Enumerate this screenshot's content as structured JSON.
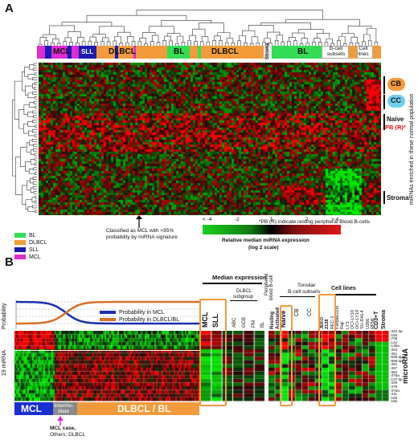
{
  "panel_a": {
    "letter": "A",
    "dendrogram_groups": {
      "mcl": "MCL",
      "sll": "SLL",
      "dlbcl1": "DLBCL",
      "bl1": "BL",
      "dlbcl2": "DLBCL",
      "stroma": "Stroma",
      "bl2": "BL",
      "bcell_subsets": "B-cell subsets",
      "cell_lines": "Cell lines"
    },
    "right_labels": {
      "cb": "CB",
      "cc": "CC",
      "naive": "Naive",
      "pbr": "PB (R)*",
      "stroma": "Stroma",
      "vertical_caption": "miRNAs enriched in these normal population"
    },
    "footnote": "*PB (R) indicate resting peripheral Blood B-cells",
    "arrow_caption_1": "Classified as MCL with >95%",
    "arrow_caption_2": "probability by miRNA signature",
    "legend": [
      {
        "label": "BL",
        "color": "#33dd55"
      },
      {
        "label": "DLBCL",
        "color": "#f39b3a"
      },
      {
        "label": "SLL",
        "color": "#1a1ab5"
      },
      {
        "label": "MCL",
        "color": "#e02ad2"
      }
    ],
    "colorbar": {
      "ticks": [
        "< -4",
        "-2",
        "1",
        "2",
        "> 4"
      ],
      "title_1": "Relative median miRNA expression",
      "title_2": "(log 2 scale)"
    },
    "colors": {
      "green": "#19c21e",
      "red": "#e01818",
      "black": "#000000",
      "orange": "#f39b3a",
      "blue": "#1a1ab5",
      "magenta": "#e02ad2",
      "cyan": "#6ecff0"
    }
  },
  "panel_b": {
    "letter": "B",
    "prob_label": "Probability",
    "prob_legend": [
      {
        "label": "Probability in MCL",
        "color": "#1a2fb0"
      },
      {
        "label": "Probability in DLBCL/BL",
        "color": "#d96f2a"
      }
    ],
    "y_label": "19 miRNA",
    "bottom_groups": {
      "mcl": "MCL",
      "inter_1": "Interme-",
      "inter_2": "diate",
      "dlbcl_bl": "DLBCL / BL"
    },
    "mcl_case_1": "MCL case,",
    "mcl_case_2": "Others: DLBCL",
    "median_expression": "Median expression",
    "dlbcl_subgroup_1": "DLBCL",
    "dlbcl_subgroup_2": "subgroup",
    "median_cols": [
      "MCL",
      "SLL",
      "ABC",
      "GCB",
      "PM",
      "BL"
    ],
    "peripheral_1": "Peripheral",
    "peripheral_2": "blood B-cell",
    "tonsilar_1": "Tonsilar",
    "tonsilar_2": "B-cell subsets",
    "pb_cols": [
      "Resting",
      "Activated"
    ],
    "tonsil_cols": [
      "Naive",
      "CB",
      "CC"
    ],
    "cell_lines": "Cell lines",
    "cell_line_cols": [
      "JEKO",
      "Z138",
      "REC-1",
      "Karpas1106",
      "Raji",
      "LY3",
      "OCI-LY10",
      "OCI-LY19",
      "SU-DHL4",
      "U266",
      "RPMI"
    ],
    "cd3": "CD3+T",
    "stroma": "Stroma",
    "microrna_label": "microRNA",
    "mirna_rows": [
      "-342-3p",
      "-150",
      "-709",
      "-142",
      "-135a",
      "-363",
      "-451",
      "-596-3p",
      "-899-3p",
      "-451",
      "-487",
      "-382",
      "-376a",
      "-127-3p",
      "-329",
      "-379",
      "-376a",
      "-411",
      "-18b",
      "-19a"
    ]
  }
}
